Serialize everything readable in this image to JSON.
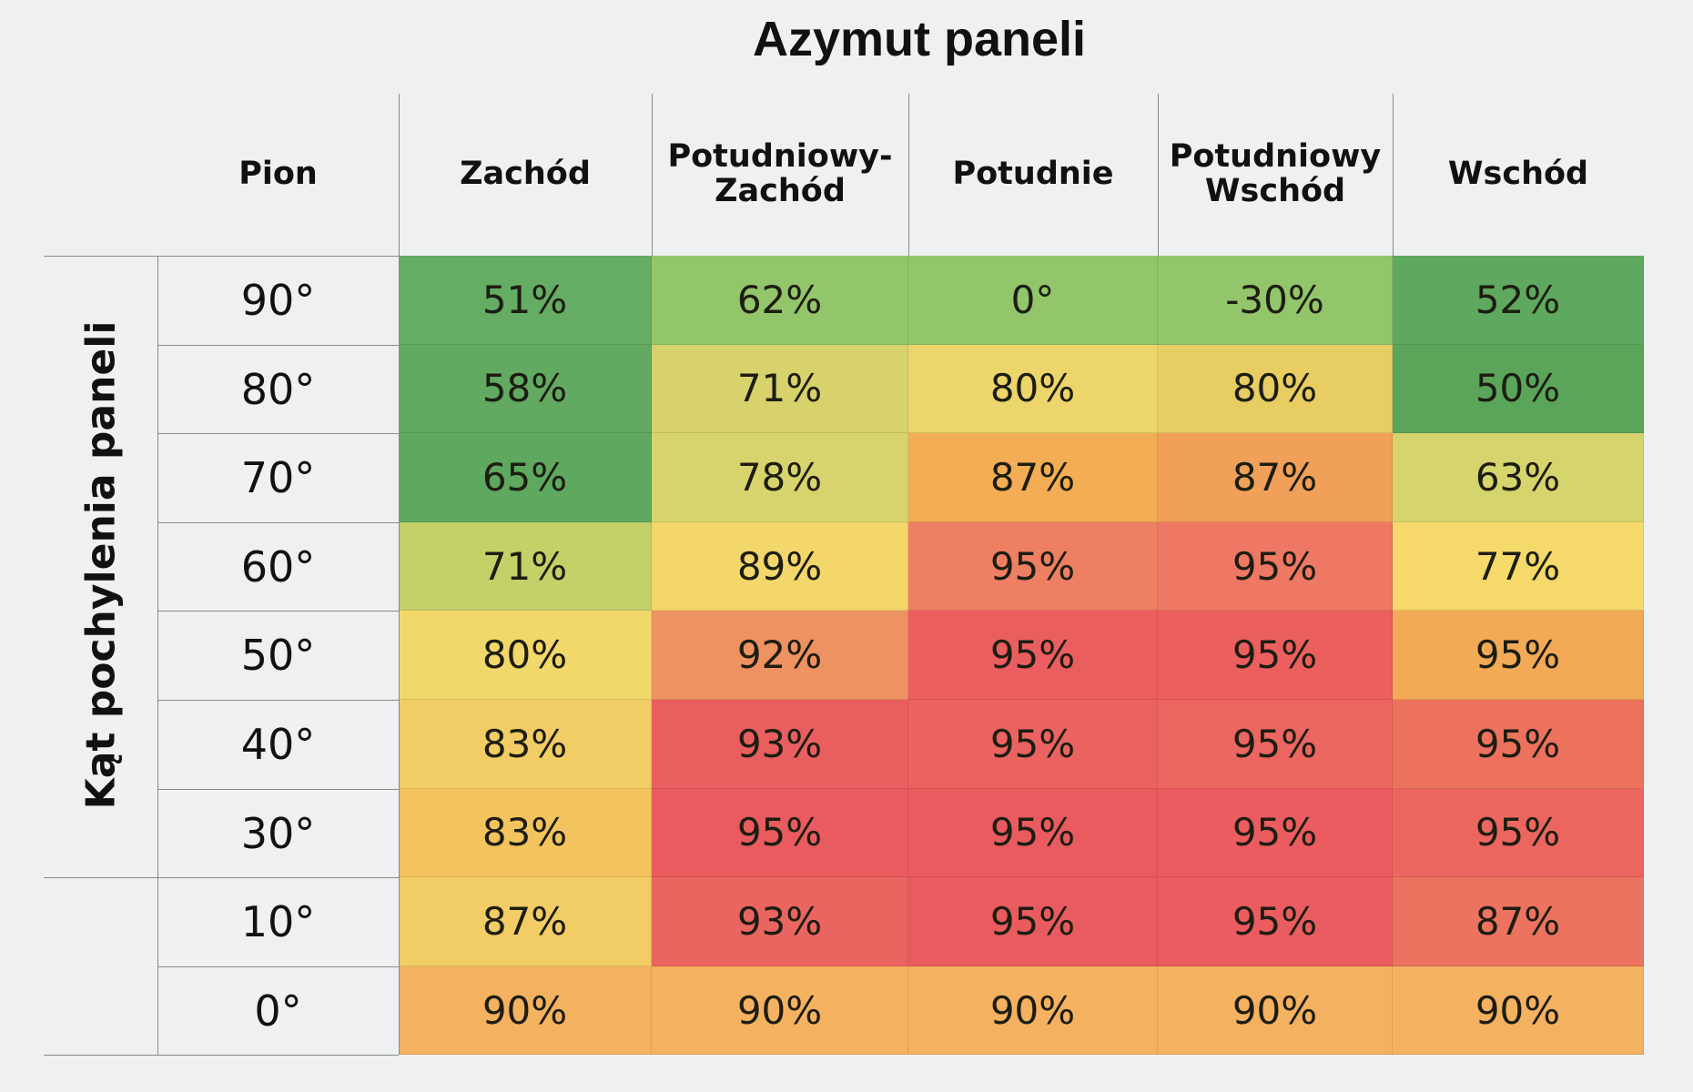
{
  "chart_data": {
    "type": "heatmap",
    "title": "Azymut paneli",
    "xlabel": "Azymut paneli",
    "ylabel": "Kąt pochylenia paneli",
    "corner_header": "Pion",
    "columns": [
      "Zachód",
      "Potudniowy-\nZachód",
      "Potudnie",
      "Potudniowy\nWschód",
      "Wschód"
    ],
    "rows": [
      "90°",
      "80°",
      "70°",
      "60°",
      "50°",
      "40°",
      "30°",
      "10°",
      "0°"
    ],
    "values": [
      [
        "51%",
        "62%",
        "0°",
        "-30%",
        "52%"
      ],
      [
        "58%",
        "71%",
        "80%",
        "80%",
        "50%"
      ],
      [
        "65%",
        "78%",
        "87%",
        "87%",
        "63%"
      ],
      [
        "71%",
        "89%",
        "95%",
        "95%",
        "77%"
      ],
      [
        "80%",
        "92%",
        "95%",
        "95%",
        "95%"
      ],
      [
        "83%",
        "93%",
        "95%",
        "95%",
        "95%"
      ],
      [
        "83%",
        "95%",
        "95%",
        "95%",
        "95%"
      ],
      [
        "87%",
        "93%",
        "95%",
        "95%",
        "87%"
      ],
      [
        "90%",
        "90%",
        "90%",
        "90%",
        "90%"
      ]
    ],
    "colors": [
      [
        "#65ad65",
        "#93c56a",
        "#93c56a",
        "#93c56a",
        "#5fa85f"
      ],
      [
        "#62aa62",
        "#d7d26b",
        "#ecd56a",
        "#e8cd63",
        "#5aa55a"
      ],
      [
        "#5fa85f",
        "#d8d46d",
        "#f3ad54",
        "#f0a058",
        "#d6d46c"
      ],
      [
        "#c5d069",
        "#f3d76b",
        "#ee7f63",
        "#ee7863",
        "#f5d96a"
      ],
      [
        "#f2d86b",
        "#ef9261",
        "#eb5e5f",
        "#eb5f5f",
        "#f2aa56"
      ],
      [
        "#f2cd65",
        "#e95f60",
        "#ea6361",
        "#eb6561",
        "#ed725e"
      ],
      [
        "#f3c45e",
        "#e95b5f",
        "#e95b5f",
        "#ea5c5f",
        "#ec6660"
      ],
      [
        "#f2cc65",
        "#ea6560",
        "#e95b5f",
        "#ea5c5f",
        "#ec735f"
      ],
      [
        "#f4b261",
        "#f4b261",
        "#f4b261",
        "#f4b261",
        "#f4b261"
      ]
    ],
    "legend": "none"
  }
}
